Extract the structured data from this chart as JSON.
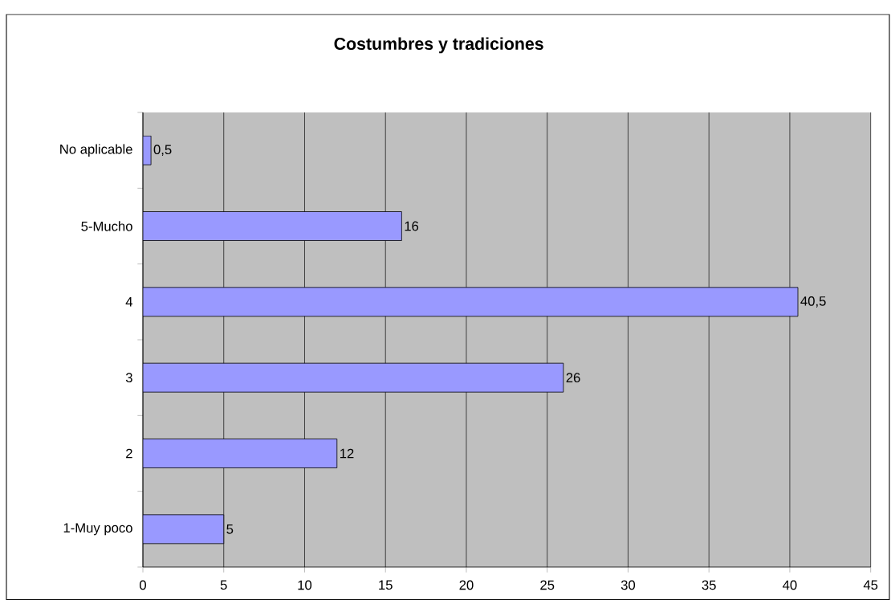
{
  "chart_data": {
    "type": "bar",
    "orientation": "horizontal",
    "title": "Costumbres y tradiciones",
    "categories": [
      "No aplicable",
      "5-Mucho",
      "4",
      "3",
      "2",
      "1-Muy poco"
    ],
    "values": [
      0.5,
      16,
      40.5,
      26,
      12,
      5
    ],
    "value_labels": [
      "0,5",
      "16",
      "40,5",
      "26",
      "12",
      "5"
    ],
    "color": "#9999ff",
    "xlim": [
      0,
      45
    ],
    "xticks": [
      0,
      5,
      10,
      15,
      20,
      25,
      30,
      35,
      40,
      45
    ],
    "grid": "x"
  }
}
